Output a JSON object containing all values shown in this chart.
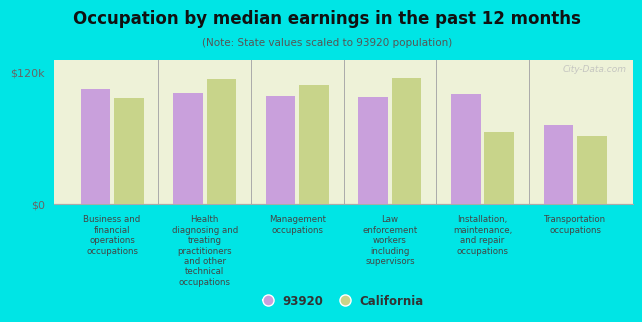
{
  "title": "Occupation by median earnings in the past 12 months",
  "subtitle": "(Note: State values scaled to 93920 population)",
  "categories": [
    "Business and\nfinancial\noperations\noccupations",
    "Health\ndiagnosing and\ntreating\npractitioners\nand other\ntechnical\noccupations",
    "Management\noccupations",
    "Law\nenforcement\nworkers\nincluding\nsupervisors",
    "Installation,\nmaintenance,\nand repair\noccupations",
    "Transportation\noccupations"
  ],
  "values_93920": [
    104000,
    101000,
    98000,
    97000,
    100000,
    72000
  ],
  "values_california": [
    96000,
    113000,
    108000,
    114000,
    65000,
    62000
  ],
  "color_93920": "#c9a0dc",
  "color_california": "#c8d48a",
  "ylim": [
    0,
    130000
  ],
  "yticks": [
    0,
    120000
  ],
  "ytick_labels": [
    "$0",
    "$120k"
  ],
  "background_color": "#00e5e5",
  "plot_bg_color": "#eef2d8",
  "legend_label_93920": "93920",
  "legend_label_california": "California",
  "watermark": "City-Data.com"
}
